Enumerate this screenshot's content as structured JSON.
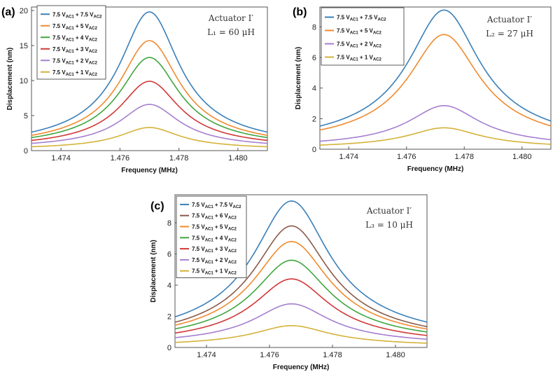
{
  "figure": {
    "frequency_unit": "MHz"
  },
  "chart_data": [
    {
      "panel": "(a)",
      "type": "line",
      "xlabel": "Frequency (MHz)",
      "ylabel": "Displacement (nm)",
      "xlim": [
        1.473,
        1.481
      ],
      "ylim": [
        0,
        20.5
      ],
      "xticks": [
        1.474,
        1.476,
        1.478,
        1.48
      ],
      "xtick_labels": [
        "1.474",
        "1.476",
        "1.478",
        "1.480"
      ],
      "yticks": [
        0,
        5,
        10,
        15,
        20
      ],
      "ytick_labels": [
        "0",
        "5",
        "10",
        "15",
        "20"
      ],
      "annotation_title": "Actuator I′",
      "annotation_param": "L₁ = 60 μH",
      "legend_position": "top-left",
      "series": [
        {
          "name": "7.5 VAC1 + 7.5 VAC2",
          "label_main": "7.5 V",
          "label_sub1": "AC1",
          "label_plus": " + 7.5 V",
          "label_sub2": "AC2",
          "color": "#3a7fb8",
          "f0": 1.477,
          "peak": 19.8,
          "base": 2.0,
          "gamma": 0.0012,
          "offset": 0.2
        },
        {
          "name": "7.5 VAC1 + 5 VAC2",
          "label_main": "7.5 V",
          "label_sub1": "AC1",
          "label_plus": " + 5 V",
          "label_sub2": "AC2",
          "color": "#f08a2e",
          "f0": 1.477,
          "peak": 15.7,
          "base": 1.7,
          "gamma": 0.0012,
          "offset": 0.2
        },
        {
          "name": "7.5 VAC1 + 4 VAC2",
          "label_main": "7.5 V",
          "label_sub1": "AC1",
          "label_plus": " + 4 V",
          "label_sub2": "AC2",
          "color": "#3fa63f",
          "f0": 1.477,
          "peak": 13.3,
          "base": 1.4,
          "gamma": 0.0012,
          "offset": 0.2
        },
        {
          "name": "7.5 VAC1 + 3 VAC2",
          "label_main": "7.5 V",
          "label_sub1": "AC1",
          "label_plus": " + 3 V",
          "label_sub2": "AC2",
          "color": "#d13838",
          "f0": 1.477,
          "peak": 9.9,
          "base": 1.1,
          "gamma": 0.0012,
          "offset": 0.2
        },
        {
          "name": "7.5 VAC1 + 2 VAC2",
          "label_main": "7.5 V",
          "label_sub1": "AC1",
          "label_plus": " + 2 V",
          "label_sub2": "AC2",
          "color": "#a57fd0",
          "f0": 1.477,
          "peak": 6.6,
          "base": 0.75,
          "gamma": 0.0012,
          "offset": 0.2
        },
        {
          "name": "7.5 VAC1 + 1 VAC2",
          "label_main": "7.5 V",
          "label_sub1": "AC1",
          "label_plus": " + 1 V",
          "label_sub2": "AC2",
          "color": "#d4b23a",
          "f0": 1.477,
          "peak": 3.3,
          "base": 0.45,
          "gamma": 0.0012,
          "offset": 0.1
        }
      ]
    },
    {
      "panel": "(b)",
      "type": "line",
      "xlabel": "Frequency (MHz)",
      "ylabel": "Displacement (nm)",
      "xlim": [
        1.473,
        1.481
      ],
      "ylim": [
        0,
        9.3
      ],
      "xticks": [
        1.474,
        1.476,
        1.478,
        1.48
      ],
      "xtick_labels": [
        "1.474",
        "1.476",
        "1.478",
        "1.480"
      ],
      "yticks": [
        0,
        2,
        4,
        6,
        8
      ],
      "ytick_labels": [
        "0",
        "2",
        "4",
        "6",
        "8"
      ],
      "annotation_title": "Actuator I′",
      "annotation_param": "L₂ = 27 μH",
      "legend_position": "top-left",
      "series": [
        {
          "name": "7.5 VAC1 + 7.5 VAC2",
          "label_main": "7.5 V",
          "label_sub1": "AC1",
          "label_plus": " + 7.5 V",
          "label_sub2": "AC2",
          "color": "#3a7fb8",
          "f0": 1.4773,
          "peak": 9.1,
          "base": 1.2,
          "gamma": 0.00145,
          "offset": 0.15
        },
        {
          "name": "7.5 VAC1 + 5 VAC2",
          "label_main": "7.5 V",
          "label_sub1": "AC1",
          "label_plus": " + 5 V",
          "label_sub2": "AC2",
          "color": "#f08a2e",
          "f0": 1.4773,
          "peak": 7.5,
          "base": 0.95,
          "gamma": 0.00145,
          "offset": 0.15
        },
        {
          "name": "7.5 VAC1 + 2 VAC2",
          "label_main": "7.5 V",
          "label_sub1": "AC1",
          "label_plus": " + 2 V",
          "label_sub2": "AC2",
          "color": "#a57fd0",
          "f0": 1.4773,
          "peak": 2.85,
          "base": 0.38,
          "gamma": 0.00145,
          "offset": 0.1
        },
        {
          "name": "7.5 VAC1 + 1 VAC2",
          "label_main": "7.5 V",
          "label_sub1": "AC1",
          "label_plus": " + 1 V",
          "label_sub2": "AC2",
          "color": "#d4b23a",
          "f0": 1.4773,
          "peak": 1.4,
          "base": 0.22,
          "gamma": 0.00145,
          "offset": 0.05
        }
      ]
    },
    {
      "panel": "(c)",
      "type": "line",
      "xlabel": "Frequency (MHz)",
      "ylabel": "Displacement (nm)",
      "xlim": [
        1.473,
        1.481
      ],
      "ylim": [
        0,
        9.8
      ],
      "xticks": [
        1.474,
        1.476,
        1.478,
        1.48
      ],
      "xtick_labels": [
        "1.474",
        "1.476",
        "1.478",
        "1.480"
      ],
      "yticks": [
        0,
        2,
        4,
        6,
        8
      ],
      "ytick_labels": [
        "0",
        "2",
        "4",
        "6",
        "8"
      ],
      "annotation_title": "Actuator I′",
      "annotation_param": "L₃ = 10 μH",
      "legend_position": "top-left",
      "series": [
        {
          "name": "7.5 VAC1 + 7.5 VAC2",
          "label_main": "7.5 V",
          "label_sub1": "AC1",
          "label_plus": " + 7.5 V",
          "label_sub2": "AC2",
          "color": "#3a7fb8",
          "f0": 1.4767,
          "peak": 9.4,
          "base": 1.45,
          "gamma": 0.0014,
          "offset": 0.2
        },
        {
          "name": "7.5 VAC1 + 6 VAC2",
          "label_main": "7.5 V",
          "label_sub1": "AC1",
          "label_plus": " + 6 V",
          "label_sub2": "AC2",
          "color": "#8b5a4a",
          "f0": 1.4767,
          "peak": 7.8,
          "base": 1.2,
          "gamma": 0.0014,
          "offset": 0.15
        },
        {
          "name": "7.5 VAC1 + 5 VAC2",
          "label_main": "7.5 V",
          "label_sub1": "AC1",
          "label_plus": " + 5 V",
          "label_sub2": "AC2",
          "color": "#f08a2e",
          "f0": 1.4767,
          "peak": 6.8,
          "base": 1.05,
          "gamma": 0.0014,
          "offset": 0.15
        },
        {
          "name": "7.5 VAC1 + 4 VAC2",
          "label_main": "7.5 V",
          "label_sub1": "AC1",
          "label_plus": " + 4 V",
          "label_sub2": "AC2",
          "color": "#3fa63f",
          "f0": 1.4767,
          "peak": 5.6,
          "base": 0.85,
          "gamma": 0.0014,
          "offset": 0.15
        },
        {
          "name": "7.5 VAC1 + 3 VAC2",
          "label_main": "7.5 V",
          "label_sub1": "AC1",
          "label_plus": " + 3 V",
          "label_sub2": "AC2",
          "color": "#d13838",
          "f0": 1.4767,
          "peak": 4.4,
          "base": 0.68,
          "gamma": 0.0014,
          "offset": 0.1
        },
        {
          "name": "7.5 VAC1 + 2 VAC2",
          "label_main": "7.5 V",
          "label_sub1": "AC1",
          "label_plus": " + 2 V",
          "label_sub2": "AC2",
          "color": "#a57fd0",
          "f0": 1.4767,
          "peak": 2.8,
          "base": 0.45,
          "gamma": 0.0014,
          "offset": 0.1
        },
        {
          "name": "7.5 VAC1 + 1 VAC2",
          "label_main": "7.5 V",
          "label_sub1": "AC1",
          "label_plus": " + 1 V",
          "label_sub2": "AC2",
          "color": "#d4b23a",
          "f0": 1.4767,
          "peak": 1.4,
          "base": 0.25,
          "gamma": 0.0014,
          "offset": 0.05
        }
      ]
    }
  ]
}
